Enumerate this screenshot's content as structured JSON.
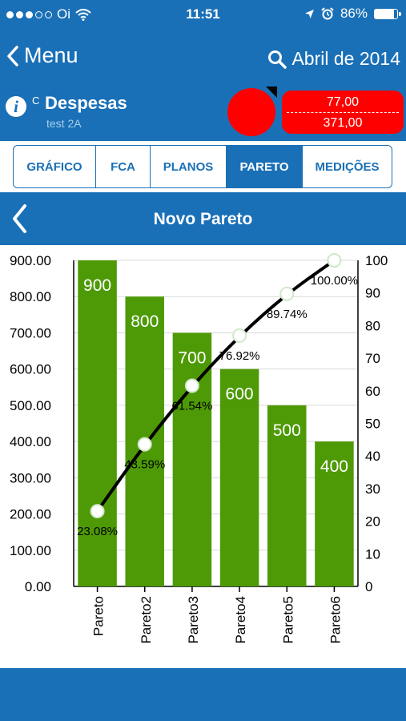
{
  "status_bar": {
    "carrier": "Oi",
    "time": "11:51",
    "battery": "86%",
    "battery_level": 0.86
  },
  "nav": {
    "back_label": "Menu",
    "date_label": "Abril de 2014"
  },
  "indicator": {
    "prefix": "C",
    "title": "Despesas",
    "subtitle": "test 2A",
    "status_color": "#ff0000",
    "value_top": "77,00",
    "value_bottom": "371,00"
  },
  "tabs": [
    {
      "label": "GRÁFICO",
      "active": false
    },
    {
      "label": "FCA",
      "active": false
    },
    {
      "label": "PLANOS",
      "active": false
    },
    {
      "label": "PARETO",
      "active": true
    },
    {
      "label": "MEDIÇÕES",
      "active": false
    }
  ],
  "page": {
    "title": "Novo Pareto"
  },
  "colors": {
    "brand": "#1a70b7",
    "bar": "#4e9a06",
    "alert": "#ff0000"
  },
  "chart_data": {
    "type": "bar",
    "categories": [
      "Pareto",
      "Pareto2",
      "Pareto3",
      "Pareto4",
      "Pareto5",
      "Pareto6"
    ],
    "values": [
      900,
      800,
      700,
      600,
      500,
      400
    ],
    "value_labels": [
      "900",
      "800",
      "700",
      "600",
      "500",
      "400"
    ],
    "cumulative": [
      23.08,
      43.59,
      61.54,
      76.92,
      89.74,
      100.0
    ],
    "cumulative_labels": [
      "23.08%",
      "43.59%",
      "61.54%",
      "76.92%",
      "89.74%",
      "100.00%"
    ],
    "ylim": [
      0,
      900
    ],
    "y2lim": [
      0,
      100
    ],
    "y_ticks": [
      "0.00",
      "100.00",
      "200.00",
      "300.00",
      "400.00",
      "500.00",
      "600.00",
      "700.00",
      "800.00",
      "900.00"
    ],
    "y2_ticks": [
      "0",
      "10",
      "20",
      "30",
      "40",
      "50",
      "60",
      "70",
      "80",
      "90",
      "100"
    ],
    "grid": true
  }
}
